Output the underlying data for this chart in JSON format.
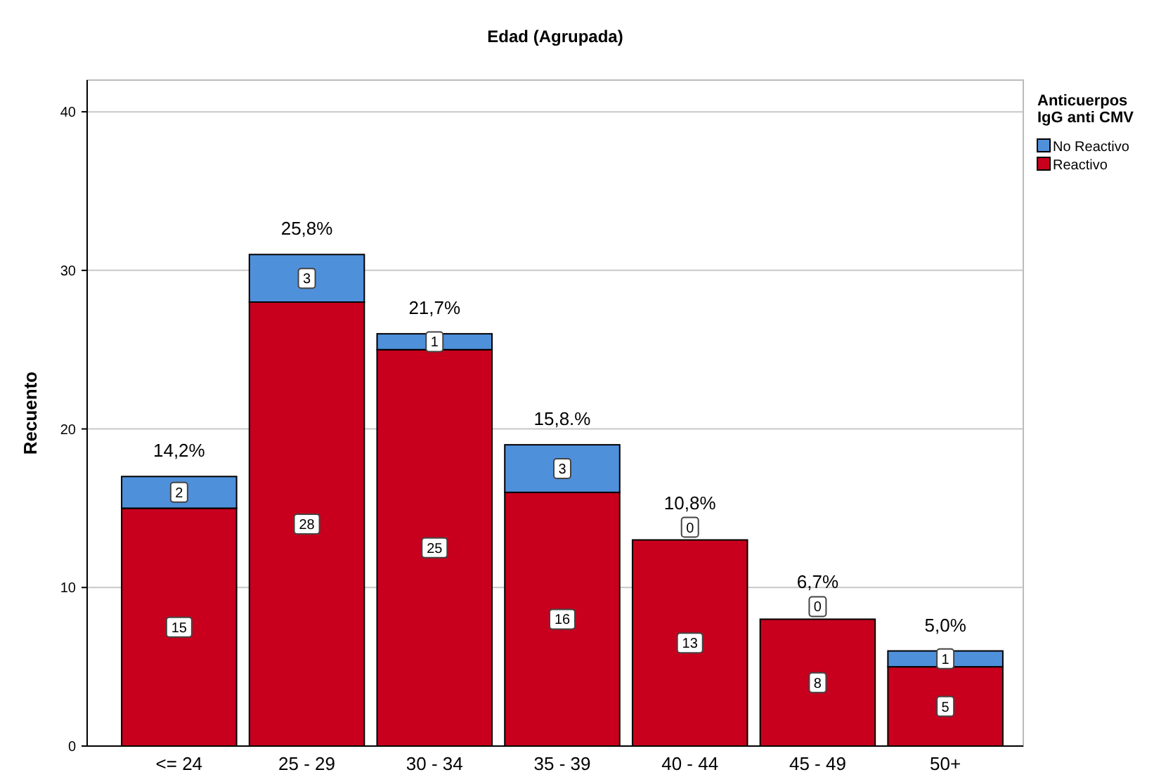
{
  "chart_data": {
    "type": "bar",
    "title": "Edad (Agrupada)",
    "ylabel": "Recuento",
    "legend_title": "Anticuerpos IgG anti CMV",
    "categories": [
      "<= 24",
      "25 - 29",
      "30 - 34",
      "35 - 39",
      "40 - 44",
      "45 - 49",
      "50+"
    ],
    "series": [
      {
        "name": "Reactivo",
        "color": "#c8001e",
        "values": [
          15,
          28,
          25,
          16,
          13,
          8,
          5
        ]
      },
      {
        "name": "No Reactivo",
        "color": "#4f90db",
        "values": [
          2,
          3,
          1,
          3,
          0,
          0,
          1
        ]
      }
    ],
    "stacked": true,
    "data_labels": true,
    "annotations": [
      {
        "text": "14,2%",
        "x": "<= 24",
        "y": 17
      },
      {
        "text": "25,8%",
        "x": "25 - 29",
        "y": 31
      },
      {
        "text": "21,7%",
        "x": "30 - 34",
        "y": 26
      },
      {
        "text": "15,8.%",
        "x": "35 - 39",
        "y": 19
      },
      {
        "text": "10,8%",
        "x": "40 - 44",
        "y": 13
      },
      {
        "text": "6,7%",
        "x": "45 - 49",
        "y": 8
      },
      {
        "text": "5,0%",
        "x": "50+",
        "y": 6
      }
    ],
    "ylim": [
      0,
      42
    ],
    "yticks": [
      0,
      10,
      20,
      30,
      40
    ],
    "grid": "y",
    "legend": "top right"
  }
}
